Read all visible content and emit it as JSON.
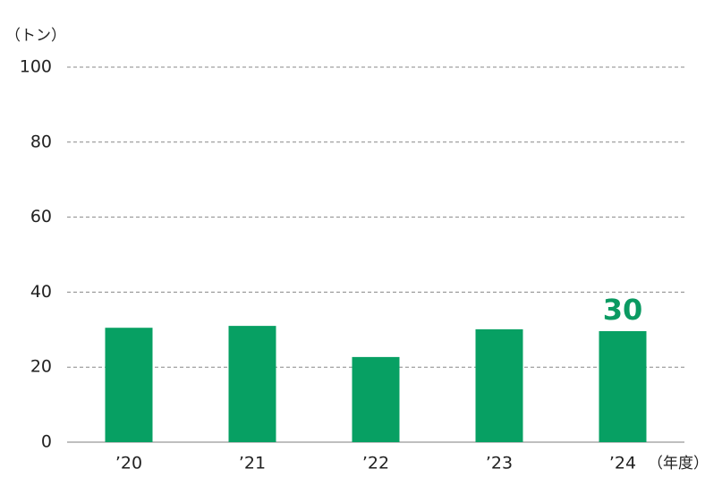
{
  "chart_data": {
    "type": "bar",
    "y_label": "（トン）",
    "x_label": "（年度）",
    "categories": [
      "’20",
      "’21",
      "’22",
      "’23",
      "’24"
    ],
    "values": [
      30.5,
      31.0,
      22.7,
      30.1,
      29.6
    ],
    "value_labels": [
      null,
      null,
      null,
      null,
      "30"
    ],
    "color": "#07a063",
    "label_color": "#0b9a62",
    "ylim": [
      0,
      100
    ],
    "yticks": [
      0,
      20,
      40,
      60,
      80,
      100
    ],
    "grid": true
  }
}
